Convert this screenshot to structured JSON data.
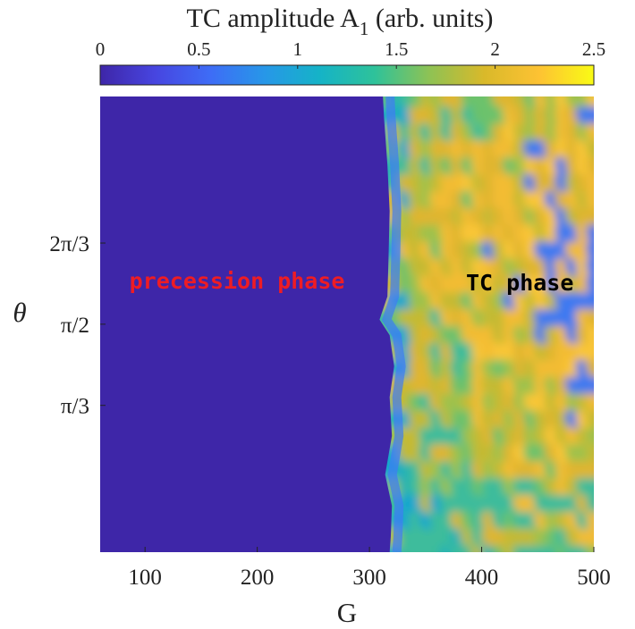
{
  "chart_data": {
    "type": "heatmap",
    "title": "TC amplitude A",
    "title_subscript": "1",
    "title_suffix": " (arb. units)",
    "xlabel": "G",
    "ylabel": "θ",
    "xlim": [
      60,
      500
    ],
    "ylim": [
      0.1,
      3.04
    ],
    "x_ticks": [
      {
        "value": 100,
        "label": "100"
      },
      {
        "value": 200,
        "label": "200"
      },
      {
        "value": 300,
        "label": "300"
      },
      {
        "value": 400,
        "label": "400"
      },
      {
        "value": 500,
        "label": "500"
      }
    ],
    "y_ticks": [
      {
        "value": 1.0472,
        "label": "π/3"
      },
      {
        "value": 1.5708,
        "label": "π/2"
      },
      {
        "value": 2.0944,
        "label": "2π/3"
      }
    ],
    "colorbar": {
      "range": [
        0,
        2.5
      ],
      "ticks": [
        {
          "value": 0,
          "label": "0"
        },
        {
          "value": 0.5,
          "label": "0.5"
        },
        {
          "value": 1,
          "label": "1"
        },
        {
          "value": 1.5,
          "label": "1.5"
        },
        {
          "value": 2,
          "label": "2"
        },
        {
          "value": 2.5,
          "label": "2.5"
        }
      ],
      "colormap": [
        "#3e26a8",
        "#4745e0",
        "#3e6cf6",
        "#2797e8",
        "#15b3c7",
        "#2ec29a",
        "#8ec254",
        "#d9b92a",
        "#fdc233",
        "#f9fb15"
      ]
    },
    "phase_boundary": [
      {
        "theta": 3.04,
        "G": 312
      },
      {
        "theta": 2.9,
        "G": 313
      },
      {
        "theta": 2.6,
        "G": 316
      },
      {
        "theta": 2.3,
        "G": 318
      },
      {
        "theta": 2.0,
        "G": 317
      },
      {
        "theta": 1.75,
        "G": 316
      },
      {
        "theta": 1.6,
        "G": 309
      },
      {
        "theta": 1.5,
        "G": 318
      },
      {
        "theta": 1.3,
        "G": 322
      },
      {
        "theta": 1.1,
        "G": 318
      },
      {
        "theta": 0.85,
        "G": 320
      },
      {
        "theta": 0.6,
        "G": 314
      },
      {
        "theta": 0.4,
        "G": 320
      },
      {
        "theta": 0.2,
        "G": 319
      },
      {
        "theta": 0.1,
        "G": 318
      }
    ],
    "regions": [
      {
        "name": "precession phase",
        "value_range": [
          0,
          0
        ]
      },
      {
        "name": "TC phase",
        "value_range": [
          0.8,
          2.5
        ]
      }
    ],
    "annotations": [
      {
        "text": "precession phase",
        "color": "#ee1c24",
        "G": 182,
        "theta": 1.8
      },
      {
        "text": "TC phase",
        "color": "#000000",
        "G": 434,
        "theta": 1.79
      }
    ]
  }
}
